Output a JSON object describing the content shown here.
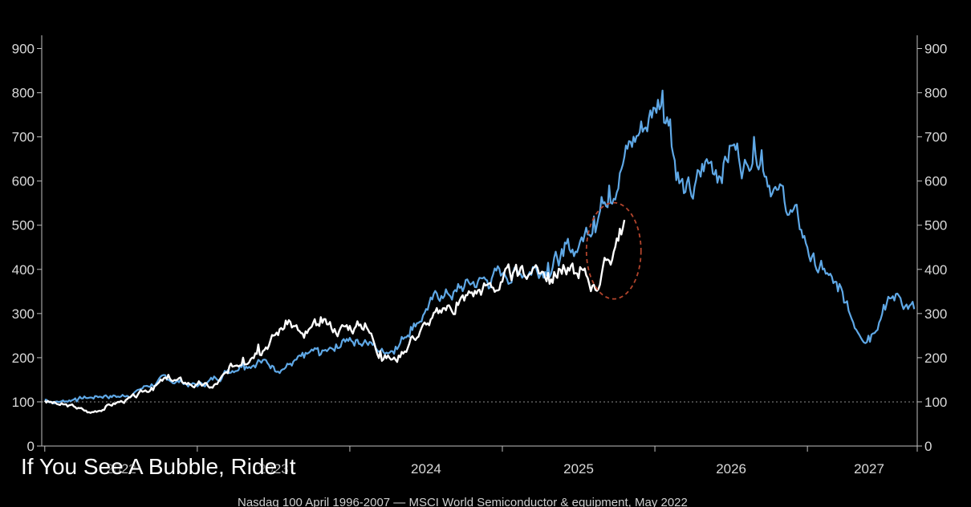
{
  "caption": "If You See A Bubble, Ride It",
  "footnote": "Nasdaq 100 April 1996-2007 — MSCI World Semiconductor & equipment, May 2022",
  "colors": {
    "background": "#000000",
    "white_series": "#ffffff",
    "blue_series": "#5fa8e6",
    "highlight_circle": "#b2442c",
    "axis": "#bfbfbf"
  },
  "chart_data": {
    "type": "line",
    "title": "",
    "xlabel": "",
    "ylabel": "",
    "x_tick_labels": [
      "2022",
      "2023",
      "2024",
      "2025",
      "2026",
      "2027"
    ],
    "xlim": [
      2021.98,
      2027.72
    ],
    "y_tick_labels": [
      "0",
      "100",
      "200",
      "300",
      "400",
      "500",
      "600",
      "700",
      "800",
      "900"
    ],
    "ylim": [
      0,
      930
    ],
    "grid": false,
    "reference_line": {
      "y": 100,
      "style": "dotted"
    },
    "annotation": {
      "type": "dashed-circle",
      "x": 2025.73,
      "y": 442
    },
    "series": [
      {
        "color": "#ffffff",
        "x": [
          2022.0,
          2022.1,
          2022.2,
          2022.3,
          2022.4,
          2022.5,
          2022.6,
          2022.7,
          2022.8,
          2022.9,
          2023.0,
          2023.1,
          2023.2,
          2023.3,
          2023.4,
          2023.5,
          2023.6,
          2023.7,
          2023.8,
          2023.9,
          2024.0,
          2024.1,
          2024.2,
          2024.3,
          2024.4,
          2024.5,
          2024.6,
          2024.7,
          2024.8,
          2024.9,
          2025.0,
          2025.1,
          2025.2,
          2025.3,
          2025.4,
          2025.5,
          2025.6,
          2025.7,
          2025.75,
          2025.8
        ],
        "y": [
          103,
          93,
          88,
          75,
          90,
          102,
          110,
          132,
          152,
          145,
          140,
          132,
          165,
          200,
          230,
          250,
          285,
          245,
          272,
          265,
          272,
          278,
          215,
          195,
          245,
          275,
          302,
          325,
          348,
          365,
          372,
          385,
          402,
          392,
          410,
          380,
          365,
          420,
          470,
          512
        ]
      },
      {
        "color": "#5fa8e6",
        "x": [
          2022.0,
          2022.1,
          2022.2,
          2022.3,
          2022.4,
          2022.5,
          2022.6,
          2022.7,
          2022.8,
          2022.9,
          2023.0,
          2023.1,
          2023.2,
          2023.3,
          2023.4,
          2023.5,
          2023.6,
          2023.7,
          2023.8,
          2023.9,
          2024.0,
          2024.1,
          2024.2,
          2024.3,
          2024.4,
          2024.5,
          2024.6,
          2024.7,
          2024.8,
          2024.9,
          2025.0,
          2025.1,
          2025.2,
          2025.3,
          2025.4,
          2025.5,
          2025.6,
          2025.7,
          2025.8,
          2025.9,
          2026.0,
          2026.05,
          2026.1,
          2026.15,
          2026.2,
          2026.25,
          2026.3,
          2026.35,
          2026.4,
          2026.5,
          2026.6,
          2026.65,
          2026.7,
          2026.8,
          2026.9,
          2027.0,
          2027.05,
          2027.1,
          2027.2,
          2027.3,
          2027.4,
          2027.5,
          2027.6,
          2027.7
        ],
        "y": [
          105,
          100,
          108,
          110,
          115,
          112,
          125,
          140,
          150,
          145,
          135,
          150,
          172,
          190,
          195,
          180,
          185,
          200,
          205,
          215,
          245,
          240,
          215,
          225,
          270,
          310,
          340,
          350,
          368,
          375,
          390,
          395,
          405,
          415,
          430,
          450,
          520,
          590,
          655,
          710,
          765,
          805,
          740,
          620,
          575,
          560,
          610,
          640,
          625,
          680,
          640,
          700,
          670,
          580,
          530,
          450,
          410,
          400,
          350,
          280,
          250,
          320,
          340,
          310
        ]
      }
    ]
  }
}
